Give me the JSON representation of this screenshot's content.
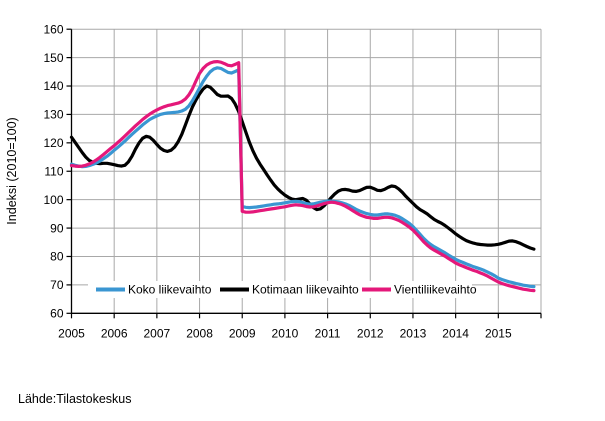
{
  "figure": {
    "ylabel": "Indeksi (2010=100)",
    "source": "Lähde:Tilastokeskus"
  },
  "colors": {
    "background": "#ffffff",
    "grid": "#a8a8a8",
    "axis": "#000000",
    "total_series": "#3a96d2",
    "domestic_series": "#000000",
    "export_series": "#e4187a"
  },
  "chart_data": {
    "type": "line",
    "title": "",
    "xlabel": "",
    "ylabel": "Indeksi (2010=100)",
    "source": "Lähde:Tilastokeskus",
    "grid": true,
    "ylim": [
      60,
      160
    ],
    "y_ticks": [
      60,
      70,
      80,
      90,
      100,
      110,
      120,
      130,
      140,
      150,
      160
    ],
    "xlim_years": [
      2005,
      2016
    ],
    "x_tick_labels": [
      "2005",
      "2006",
      "2007",
      "2008",
      "2009",
      "2010",
      "2011",
      "2012",
      "2013",
      "2014",
      "2015"
    ],
    "x_unit": "month",
    "x_start_year": 2005,
    "points_per_year": 12,
    "legend": {
      "position": "bottom-inside"
    },
    "series": [
      {
        "name": "Koko liikevaihto",
        "color": "#3a96d2",
        "values": [
          112.5,
          112.1,
          111.8,
          111.6,
          111.7,
          112.0,
          112.4,
          112.9,
          113.6,
          114.4,
          115.3,
          116.3,
          117.4,
          118.4,
          119.5,
          120.6,
          121.8,
          123.0,
          124.1,
          125.2,
          126.3,
          127.3,
          128.2,
          128.9,
          129.5,
          130.0,
          130.3,
          130.5,
          130.6,
          130.7,
          130.9,
          131.2,
          131.8,
          133.0,
          134.8,
          137.0,
          139.3,
          141.6,
          143.5,
          145.0,
          146.0,
          146.4,
          146.2,
          145.5,
          144.8,
          144.6,
          145.1,
          145.7,
          97.6,
          97.3,
          97.2,
          97.3,
          97.4,
          97.6,
          97.8,
          98.0,
          98.2,
          98.4,
          98.5,
          98.7,
          98.9,
          99.1,
          99.3,
          99.4,
          99.3,
          99.0,
          98.6,
          98.4,
          98.5,
          98.8,
          99.1,
          99.3,
          99.5,
          99.5,
          99.4,
          99.2,
          98.9,
          98.5,
          98.0,
          97.3,
          96.6,
          96.0,
          95.5,
          95.1,
          94.8,
          94.6,
          94.6,
          94.8,
          95.0,
          95.0,
          94.8,
          94.5,
          94.0,
          93.3,
          92.5,
          91.6,
          90.5,
          89.2,
          87.8,
          86.4,
          85.2,
          84.2,
          83.4,
          82.7,
          82.0,
          81.3,
          80.5,
          79.7,
          79.0,
          78.4,
          77.9,
          77.4,
          76.9,
          76.4,
          76.0,
          75.6,
          75.1,
          74.5,
          73.9,
          73.2,
          72.4,
          71.9,
          71.5,
          71.1,
          70.8,
          70.5,
          70.2,
          69.9,
          69.7,
          69.5,
          69.4
        ]
      },
      {
        "name": "Kotimaan liikevaihto",
        "color": "#000000",
        "values": [
          122.0,
          120.2,
          118.4,
          116.6,
          115.0,
          113.8,
          113.2,
          112.8,
          112.7,
          112.8,
          112.8,
          112.6,
          112.3,
          112.0,
          111.8,
          112.1,
          113.3,
          115.3,
          117.8,
          120.0,
          121.6,
          122.3,
          122.0,
          120.9,
          119.4,
          118.1,
          117.3,
          117.0,
          117.4,
          118.5,
          120.4,
          123.0,
          126.2,
          129.6,
          132.6,
          135.1,
          137.2,
          138.9,
          140.0,
          139.6,
          138.3,
          137.0,
          136.4,
          136.4,
          136.5,
          135.6,
          133.7,
          131.0,
          127.5,
          123.8,
          120.3,
          117.2,
          114.6,
          112.5,
          110.6,
          108.7,
          106.9,
          105.2,
          103.8,
          102.6,
          101.6,
          100.8,
          100.2,
          100.0,
          100.2,
          100.4,
          99.8,
          98.5,
          97.2,
          96.5,
          96.8,
          97.8,
          99.2,
          100.7,
          102.0,
          103.0,
          103.5,
          103.6,
          103.4,
          103.0,
          102.9,
          103.2,
          103.8,
          104.3,
          104.4,
          103.9,
          103.3,
          103.2,
          103.6,
          104.3,
          104.8,
          104.6,
          103.8,
          102.6,
          101.2,
          99.9,
          98.7,
          97.5,
          96.5,
          95.8,
          95.0,
          94.0,
          93.0,
          92.3,
          91.7,
          90.9,
          90.0,
          89.0,
          88.0,
          87.1,
          86.3,
          85.6,
          85.1,
          84.7,
          84.4,
          84.2,
          84.1,
          84.0,
          84.0,
          84.1,
          84.3,
          84.6,
          85.0,
          85.4,
          85.5,
          85.2,
          84.7,
          84.1,
          83.5,
          83.0,
          82.6
        ]
      },
      {
        "name": "Vientiliikevaihto",
        "color": "#e4187a",
        "values": [
          112.0,
          111.8,
          111.7,
          111.8,
          112.1,
          112.6,
          113.2,
          114.0,
          114.9,
          115.9,
          117.0,
          118.0,
          119.0,
          120.1,
          121.2,
          122.4,
          123.6,
          124.8,
          126.0,
          127.1,
          128.2,
          129.2,
          130.1,
          130.9,
          131.6,
          132.2,
          132.7,
          133.1,
          133.4,
          133.7,
          134.0,
          134.5,
          135.4,
          136.9,
          139.0,
          141.8,
          144.4,
          146.2,
          147.4,
          148.1,
          148.5,
          148.6,
          148.4,
          147.9,
          147.3,
          147.1,
          147.6,
          148.2,
          95.9,
          95.6,
          95.6,
          95.7,
          95.9,
          96.1,
          96.3,
          96.5,
          96.7,
          96.9,
          97.1,
          97.3,
          97.5,
          97.8,
          98.0,
          98.2,
          98.1,
          97.9,
          97.6,
          97.4,
          97.5,
          97.8,
          98.2,
          98.6,
          98.9,
          99.1,
          99.0,
          98.7,
          98.3,
          97.7,
          97.0,
          96.2,
          95.4,
          94.7,
          94.2,
          93.8,
          93.6,
          93.4,
          93.4,
          93.6,
          93.8,
          93.8,
          93.6,
          93.2,
          92.7,
          92.0,
          91.2,
          90.3,
          89.3,
          88.0,
          86.6,
          85.2,
          84.0,
          83.0,
          82.2,
          81.5,
          80.8,
          80.1,
          79.3,
          78.5,
          77.7,
          77.1,
          76.6,
          76.1,
          75.6,
          75.1,
          74.7,
          74.2,
          73.7,
          73.1,
          72.4,
          71.7,
          71.0,
          70.5,
          70.1,
          69.7,
          69.4,
          69.1,
          68.8,
          68.5,
          68.3,
          68.1,
          68.0
        ]
      }
    ]
  }
}
